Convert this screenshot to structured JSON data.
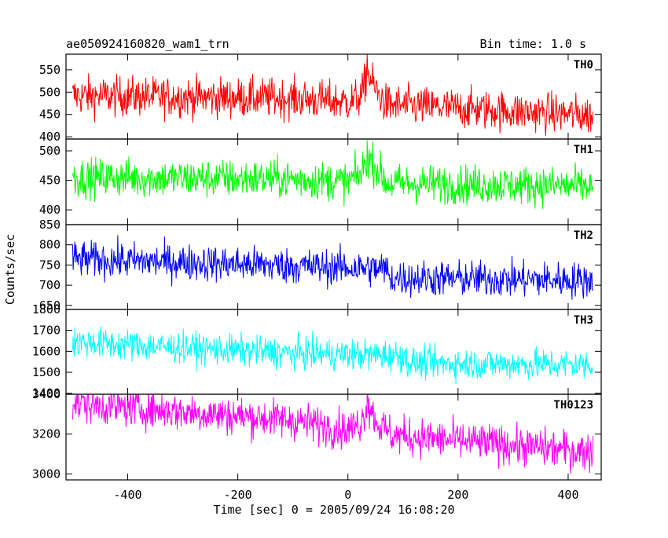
{
  "title_left": "ae050924160820_wam1_trn",
  "title_right": "Bin time: 1.0 s",
  "ylabel": "Counts/sec",
  "xlabel": "Time [sec] 0 = 2005/09/24 16:08:20",
  "chart_data": {
    "type": "line",
    "xlim": [
      -512,
      460
    ],
    "x_ticks": [
      -400,
      -200,
      0,
      200,
      400
    ],
    "x_range_data": [
      -500,
      445
    ],
    "bin_time_s": 1.0,
    "panels": [
      {
        "name": "TH0",
        "color": "#ff0000",
        "ylim": [
          395,
          585
        ],
        "y_ticks": [
          400,
          450,
          500,
          550
        ],
        "trend": [
          [
            -500,
            492
          ],
          [
            -100,
            486
          ],
          [
            0,
            478
          ],
          [
            25,
            490
          ],
          [
            35,
            545
          ],
          [
            50,
            505
          ],
          [
            70,
            472
          ],
          [
            445,
            448
          ]
        ],
        "noise": 30,
        "peak": {
          "x": 35,
          "value": 585
        }
      },
      {
        "name": "TH1",
        "color": "#00ff00",
        "ylim": [
          375,
          520
        ],
        "y_ticks": [
          400,
          450,
          500
        ],
        "trend": [
          [
            -500,
            455
          ],
          [
            -100,
            452
          ],
          [
            0,
            448
          ],
          [
            25,
            462
          ],
          [
            35,
            490
          ],
          [
            55,
            468
          ],
          [
            70,
            445
          ],
          [
            445,
            440
          ]
        ],
        "noise": 22,
        "peak": {
          "x": 35,
          "value": 518
        }
      },
      {
        "name": "TH2",
        "color": "#0000ff",
        "ylim": [
          640,
          850
        ],
        "y_ticks": [
          650,
          700,
          750,
          800,
          850
        ],
        "trend": [
          [
            -500,
            765
          ],
          [
            -100,
            748
          ],
          [
            70,
            740
          ],
          [
            75,
            718
          ],
          [
            445,
            712
          ]
        ],
        "noise": 30,
        "peak": null
      },
      {
        "name": "TH3",
        "color": "#00ffff",
        "ylim": [
          1395,
          1800
        ],
        "y_ticks": [
          1400,
          1500,
          1600,
          1700,
          1800
        ],
        "trend": [
          [
            -500,
            1645
          ],
          [
            -100,
            1590
          ],
          [
            100,
            1580
          ],
          [
            110,
            1545
          ],
          [
            445,
            1535
          ]
        ],
        "noise": 50,
        "peak": null
      },
      {
        "name": "TH0123",
        "color": "#ff00ff",
        "ylim": [
          2970,
          3400
        ],
        "y_ticks": [
          3000,
          3200,
          3400
        ],
        "trend": [
          [
            -500,
            3355
          ],
          [
            -100,
            3270
          ],
          [
            0,
            3220
          ],
          [
            25,
            3260
          ],
          [
            35,
            3360
          ],
          [
            55,
            3250
          ],
          [
            80,
            3195
          ],
          [
            445,
            3110
          ]
        ],
        "noise": 65,
        "peak": {
          "x": 35,
          "value": 3400
        }
      }
    ]
  }
}
